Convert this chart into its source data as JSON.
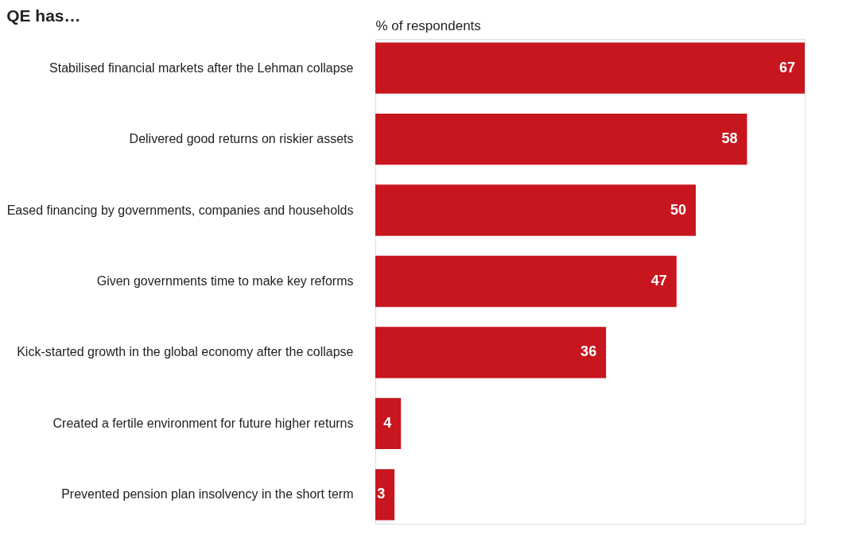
{
  "chart_data": {
    "type": "bar",
    "orientation": "horizontal",
    "title": "QE has…",
    "xlabel": "% of respondents",
    "categories": [
      "Stabilised financial markets after the Lehman collapse",
      "Delivered good returns on riskier assets",
      "Eased financing by governments, companies and households",
      "Given governments time to make key reforms",
      "Kick-started growth in the global economy after the collapse",
      "Created a fertile environment for future higher returns",
      "Prevented pension plan insolvency in the short term"
    ],
    "values": [
      67,
      58,
      50,
      47,
      36,
      4,
      3
    ],
    "color": "#c8161f",
    "data_labels": true
  }
}
